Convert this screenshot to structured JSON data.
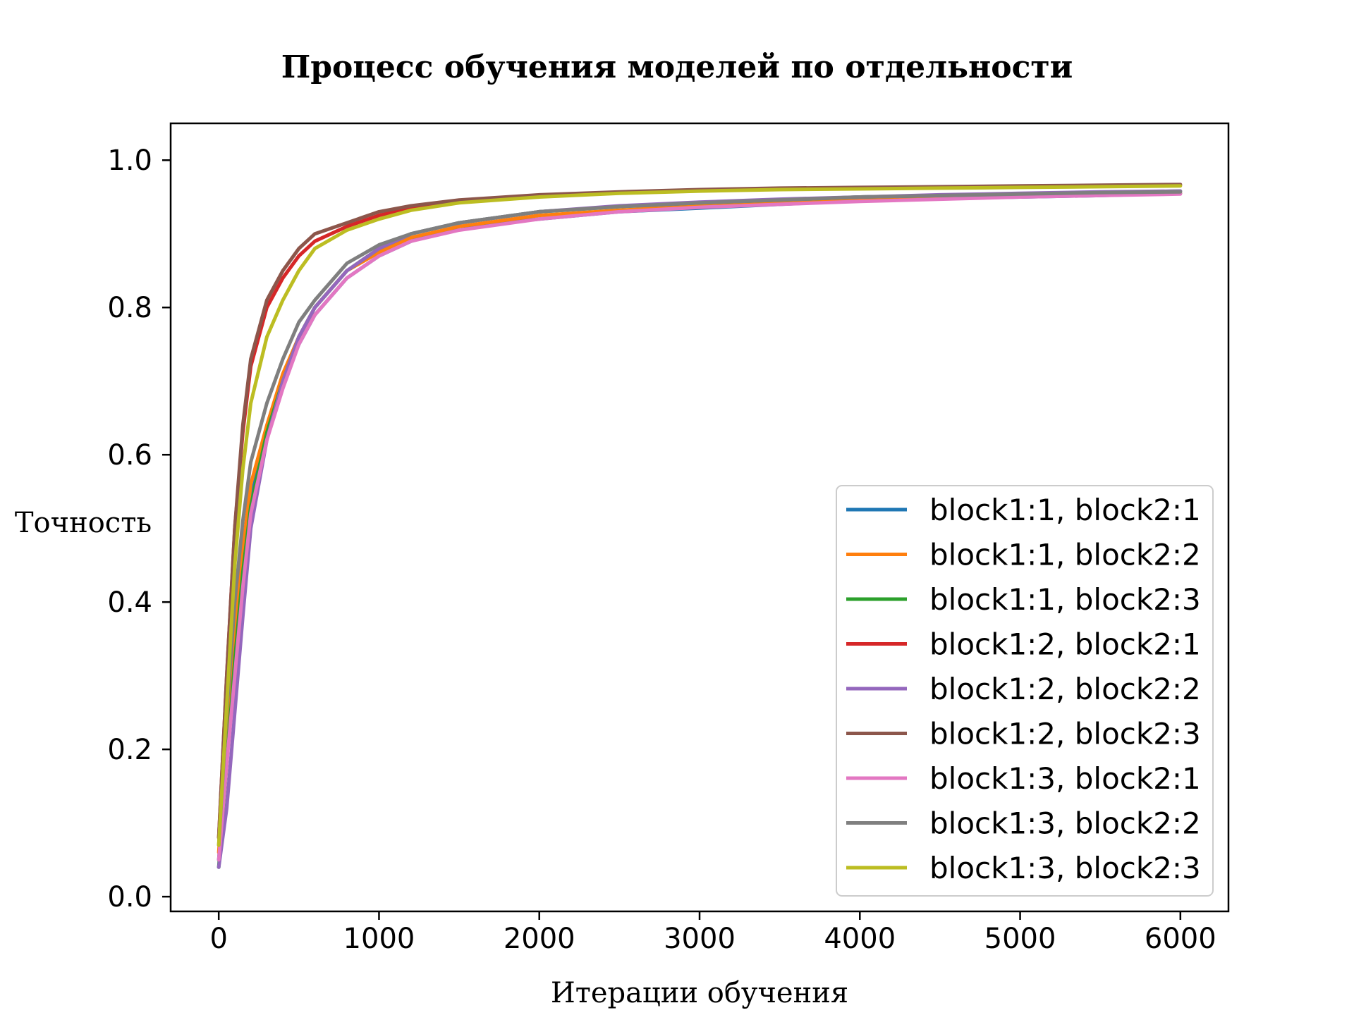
{
  "chart_data": {
    "type": "line",
    "title": "Процесс обучения моделей по отдельности",
    "xlabel": "Итерации обучения",
    "ylabel": "Точность",
    "xlim": [
      -300,
      6300
    ],
    "ylim": [
      -0.02,
      1.05
    ],
    "xticks": [
      0,
      1000,
      2000,
      3000,
      4000,
      5000,
      6000
    ],
    "xtick_labels": [
      "0",
      "1000",
      "2000",
      "3000",
      "4000",
      "5000",
      "6000"
    ],
    "yticks": [
      0.0,
      0.2,
      0.4,
      0.6,
      0.8,
      1.0
    ],
    "ytick_labels": [
      "0.0",
      "0.2",
      "0.4",
      "0.6",
      "0.8",
      "1.0"
    ],
    "grid": false,
    "legend_position": "lower-right",
    "x": [
      0,
      50,
      100,
      150,
      200,
      300,
      400,
      500,
      600,
      800,
      1000,
      1200,
      1500,
      2000,
      2500,
      3000,
      3500,
      4000,
      4500,
      5000,
      5500,
      6000
    ],
    "series": [
      {
        "name": "block1:1, block2:1",
        "color": "#1f77b4",
        "values": [
          0.05,
          0.2,
          0.34,
          0.45,
          0.54,
          0.63,
          0.7,
          0.75,
          0.79,
          0.84,
          0.87,
          0.89,
          0.91,
          0.92,
          0.93,
          0.935,
          0.94,
          0.945,
          0.948,
          0.95,
          0.952,
          0.955
        ]
      },
      {
        "name": "block1:1, block2:2",
        "color": "#ff7f0e",
        "values": [
          0.06,
          0.22,
          0.36,
          0.47,
          0.56,
          0.64,
          0.71,
          0.76,
          0.8,
          0.85,
          0.875,
          0.895,
          0.91,
          0.925,
          0.932,
          0.938,
          0.942,
          0.946,
          0.949,
          0.951,
          0.953,
          0.955
        ]
      },
      {
        "name": "block1:1, block2:3",
        "color": "#2ca02c",
        "values": [
          0.04,
          0.18,
          0.32,
          0.44,
          0.53,
          0.63,
          0.7,
          0.76,
          0.8,
          0.85,
          0.88,
          0.9,
          0.915,
          0.93,
          0.937,
          0.942,
          0.946,
          0.95,
          0.952,
          0.954,
          0.956,
          0.958
        ]
      },
      {
        "name": "block1:2, block2:1",
        "color": "#d62728",
        "values": [
          0.08,
          0.3,
          0.5,
          0.63,
          0.72,
          0.8,
          0.84,
          0.87,
          0.89,
          0.91,
          0.925,
          0.935,
          0.945,
          0.952,
          0.956,
          0.959,
          0.961,
          0.962,
          0.963,
          0.964,
          0.965,
          0.966
        ]
      },
      {
        "name": "block1:2, block2:2",
        "color": "#9467bd",
        "values": [
          0.04,
          0.12,
          0.25,
          0.38,
          0.5,
          0.62,
          0.7,
          0.76,
          0.8,
          0.85,
          0.88,
          0.9,
          0.915,
          0.93,
          0.938,
          0.943,
          0.947,
          0.95,
          0.953,
          0.955,
          0.957,
          0.958
        ]
      },
      {
        "name": "block1:2, block2:3",
        "color": "#8c564b",
        "values": [
          0.08,
          0.3,
          0.5,
          0.64,
          0.73,
          0.81,
          0.85,
          0.88,
          0.9,
          0.915,
          0.93,
          0.938,
          0.946,
          0.953,
          0.957,
          0.96,
          0.962,
          0.963,
          0.964,
          0.965,
          0.966,
          0.967
        ]
      },
      {
        "name": "block1:3, block2:1",
        "color": "#e377c2",
        "values": [
          0.05,
          0.18,
          0.3,
          0.42,
          0.52,
          0.62,
          0.69,
          0.75,
          0.79,
          0.84,
          0.87,
          0.89,
          0.905,
          0.92,
          0.93,
          0.936,
          0.94,
          0.944,
          0.947,
          0.95,
          0.952,
          0.954
        ]
      },
      {
        "name": "block1:3, block2:2",
        "color": "#7f7f7f",
        "values": [
          0.07,
          0.25,
          0.4,
          0.51,
          0.59,
          0.67,
          0.73,
          0.78,
          0.81,
          0.86,
          0.885,
          0.9,
          0.915,
          0.93,
          0.937,
          0.942,
          0.946,
          0.95,
          0.952,
          0.954,
          0.956,
          0.957
        ]
      },
      {
        "name": "block1:3, block2:3",
        "color": "#bcbd22",
        "values": [
          0.07,
          0.26,
          0.45,
          0.58,
          0.67,
          0.76,
          0.81,
          0.85,
          0.88,
          0.905,
          0.92,
          0.932,
          0.942,
          0.95,
          0.955,
          0.958,
          0.96,
          0.961,
          0.962,
          0.963,
          0.964,
          0.965
        ]
      }
    ]
  }
}
